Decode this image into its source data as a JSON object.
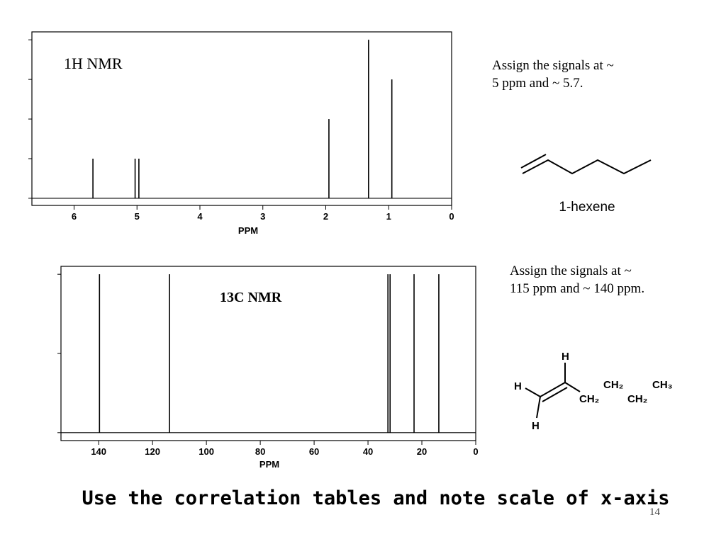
{
  "chart_data": [
    {
      "type": "bar",
      "title": "1H NMR",
      "xlabel": "PPM",
      "color": "#000000",
      "x": [
        5.7,
        5.03,
        4.97,
        1.95,
        1.32,
        0.95
      ],
      "values": [
        1,
        1,
        1,
        2,
        4,
        3
      ],
      "xlim": [
        6.67,
        0
      ],
      "xticks": [
        6,
        5,
        4,
        3,
        2,
        1,
        0
      ],
      "ylim": [
        -0.18,
        4.2
      ],
      "yticks": [
        0,
        1,
        2,
        3,
        4
      ]
    },
    {
      "type": "bar",
      "title": "13C NMR",
      "xlabel": "PPM",
      "color": "#000000",
      "x": [
        139.7,
        113.7,
        32.6,
        31.8,
        22.9,
        13.7
      ],
      "values": [
        2,
        2,
        2,
        2,
        2,
        2
      ],
      "xlim": [
        154,
        0
      ],
      "xticks": [
        140,
        120,
        100,
        80,
        60,
        40,
        20,
        0
      ],
      "ylim": [
        -0.1,
        2.1
      ],
      "yticks": [
        0,
        1,
        2
      ]
    }
  ],
  "notes": [
    [
      "Assign the signals at ~",
      "5 ppm and ~ 5.7."
    ],
    [
      "Assign the signals at ~",
      "115 ppm and ~ 140 ppm."
    ]
  ],
  "molecule_name": "1-hexene",
  "structure_labels": [
    "H",
    "H",
    "H",
    "CH₂",
    "CH₂",
    "CH₂",
    "CH₃"
  ],
  "caption": "Use the correlation tables and note scale of x-axis",
  "page_number": "14"
}
